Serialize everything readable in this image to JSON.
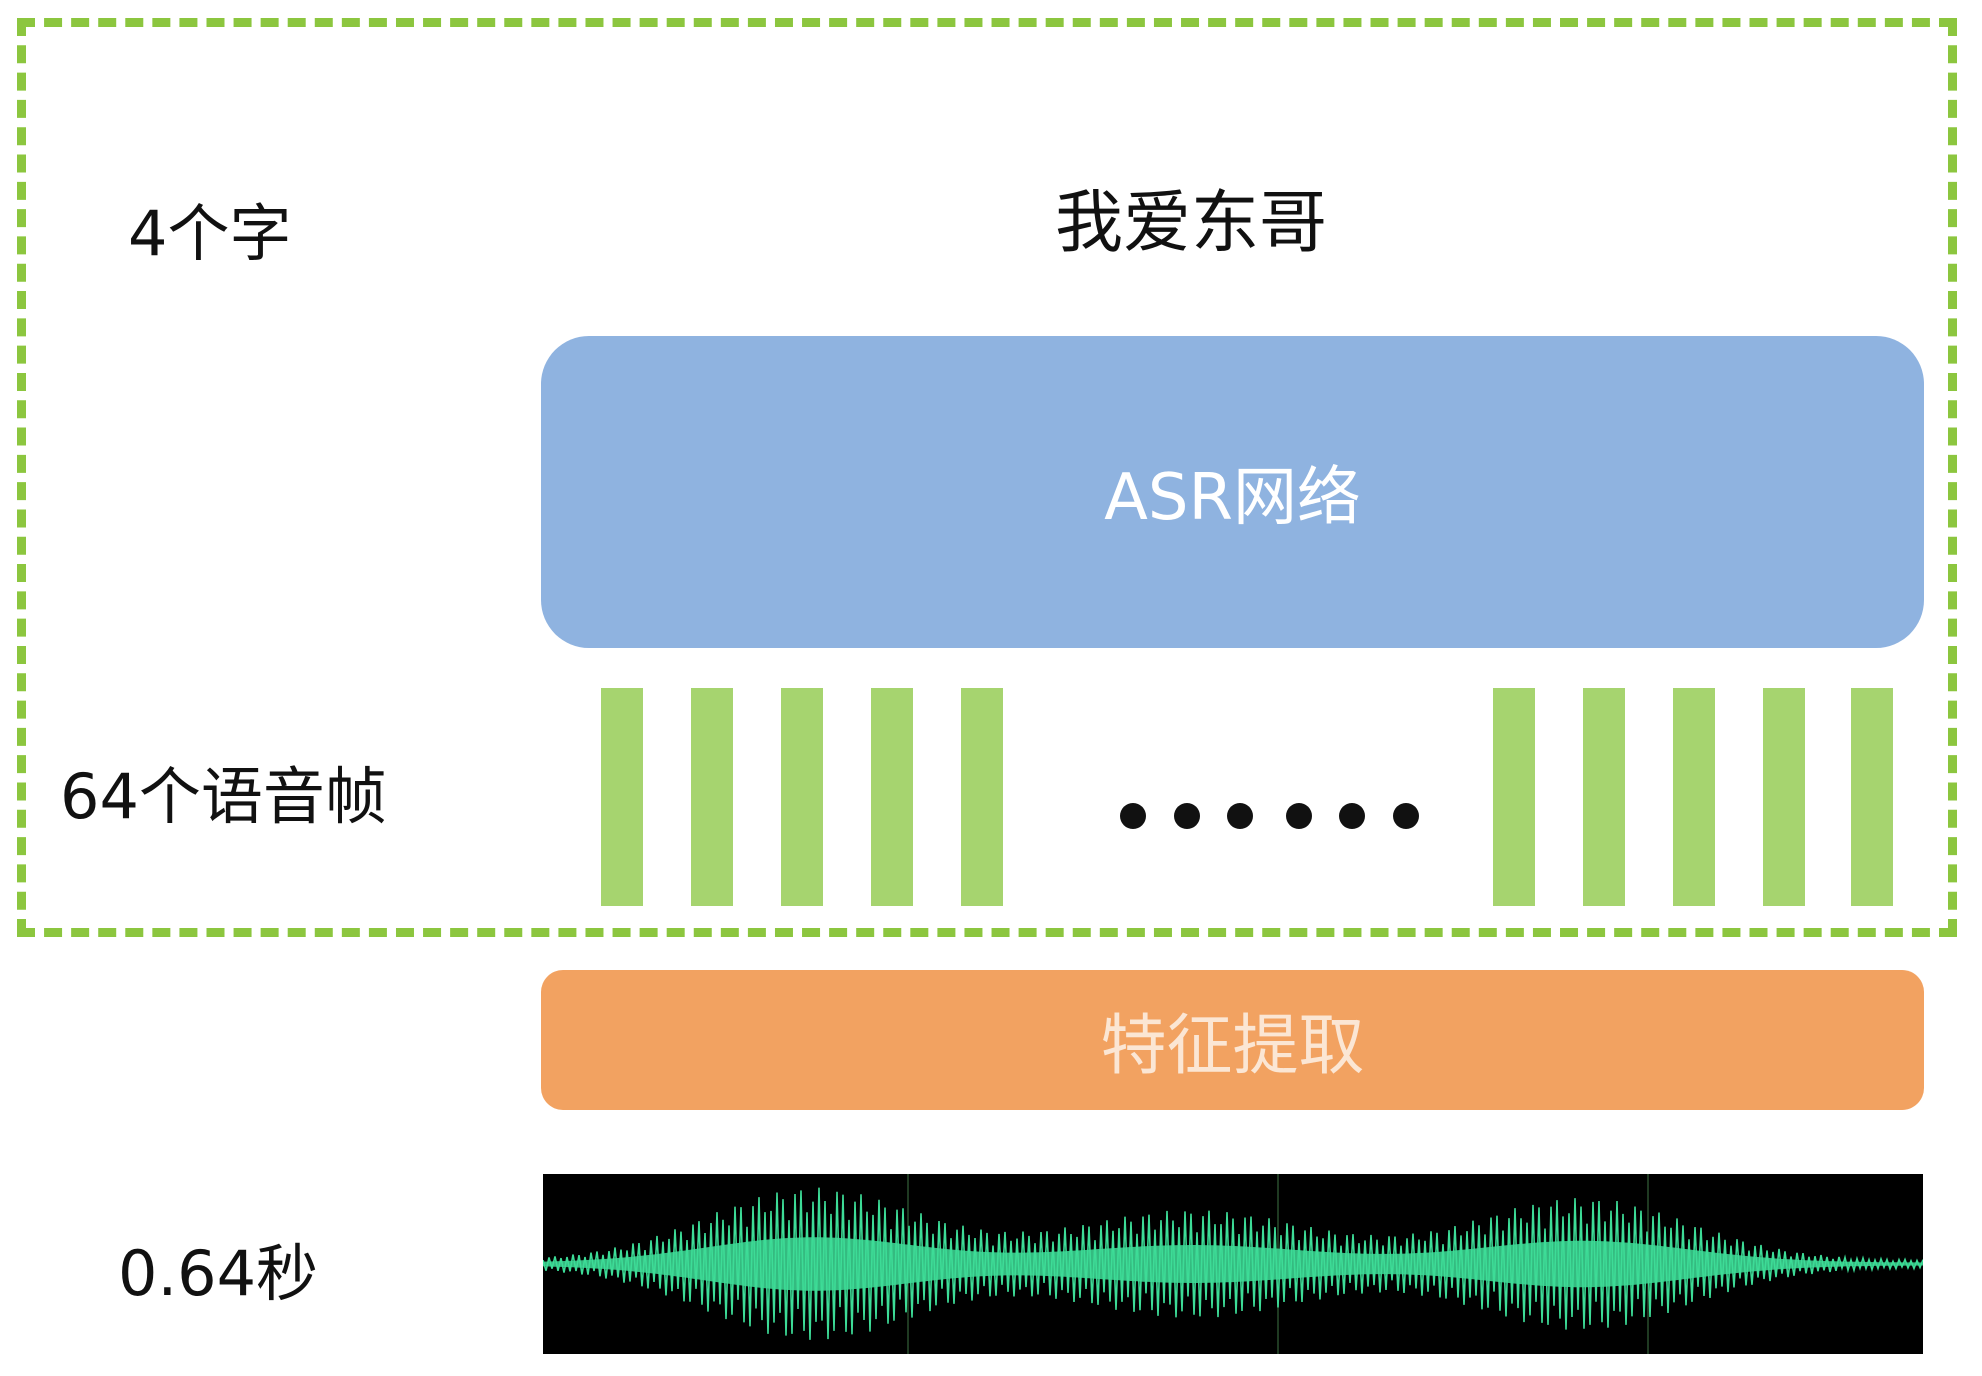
{
  "labels": {
    "chars": "4个字",
    "frames": "64个语音帧",
    "duration": "0.64秒"
  },
  "output_text": "我爱东哥",
  "asr_box": {
    "label": "ASR网络"
  },
  "feature_box": {
    "label": "特征提取"
  },
  "colors": {
    "dashed_border": "#8cc63f",
    "asr_box": "#8fb3e0",
    "frame": "#a6d46f",
    "feature_box": "#f2a261",
    "waveform": "#3ddc97",
    "waveform_bg": "#000000"
  }
}
